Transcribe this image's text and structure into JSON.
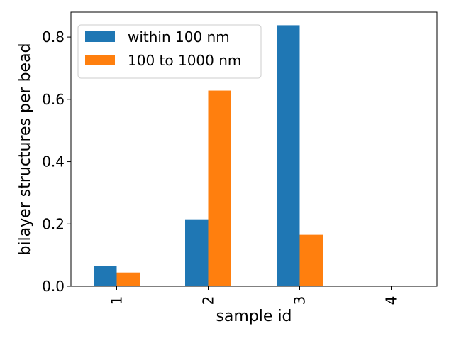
{
  "chart_data": {
    "type": "bar",
    "categories": [
      "1",
      "2",
      "3",
      "4"
    ],
    "series": [
      {
        "name": "within 100 nm",
        "values": [
          0.065,
          0.215,
          0.838,
          0.0
        ],
        "color": "#1f77b4"
      },
      {
        "name": "100 to 1000 nm",
        "values": [
          0.044,
          0.628,
          0.165,
          0.0
        ],
        "color": "#ff7f0e"
      }
    ],
    "xlabel": "sample id",
    "ylabel": "bilayer structures per bead",
    "ylim": [
      0,
      0.88
    ],
    "yticks": [
      0.0,
      0.2,
      0.4,
      0.6,
      0.8
    ],
    "ytick_labels": [
      "0.0",
      "0.2",
      "0.4",
      "0.6",
      "0.8"
    ],
    "xtick_rotation": "vertical",
    "grid": false,
    "legend": "top-left"
  }
}
